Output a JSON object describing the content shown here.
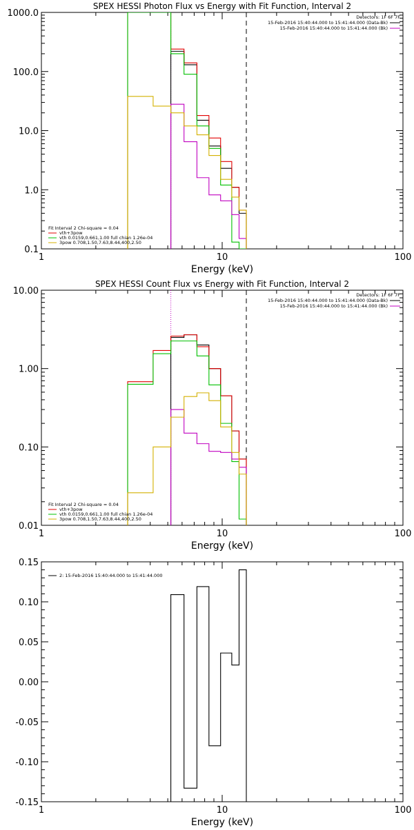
{
  "chart_data": [
    {
      "type": "line",
      "title": "SPEX HESSI Photon Flux vs Energy with Fit Function, Interval 2",
      "xlabel": "Energy (keV)",
      "ylabel": "",
      "xscale": "log",
      "yscale": "log",
      "xlim": [
        1,
        100
      ],
      "ylim": [
        0.1,
        1000
      ],
      "xtick_labels": [
        "1",
        "10",
        "100"
      ],
      "ytick_labels": [
        "0.1",
        "1.0",
        "10.0",
        "100.0",
        "1000.0"
      ],
      "vlines": [
        {
          "x": 5.2,
          "style": "dotted",
          "color": "#c000c0"
        },
        {
          "x": 13.6,
          "style": "dashed",
          "color": "#000000"
        }
      ],
      "info_top": {
        "detectors": "Detectors: 1F 6F 7F",
        "lines": [
          {
            "text": "15-Feb-2016 15:40:44.000 to 15:41:44.000 (Data-Bk)",
            "color": "#000000"
          },
          {
            "text": "15-Feb-2016 15:40:44.000 to 15:41:44.000 (Bk)",
            "color": "#c000c0"
          }
        ]
      },
      "legend": {
        "header": "Fit Interval 2   Chi-square = 0.04",
        "entries": [
          {
            "text": "vth+3pow",
            "color": "#e00000"
          },
          {
            "text": "vth 0.0159,0.661,1.00  full chian 1.26e-04",
            "color": "#00c000"
          },
          {
            "text": "3pow 0.708,1.50,7.63,8.44,400,2.50",
            "color": "#d4b000"
          }
        ]
      },
      "series": [
        {
          "color": "#000000",
          "x": [
            5.2,
            6.15,
            7.25,
            8.45,
            9.8,
            11.3,
            12.4,
            13.6
          ],
          "values": [
            220,
            130,
            15,
            5.5,
            2.3,
            1.1,
            0.4,
            0.14
          ]
        },
        {
          "color": "#e00000",
          "x": [
            3,
            4.15,
            5.2,
            6.15,
            7.25,
            8.45,
            9.8,
            11.3,
            12.4,
            13.6
          ],
          "values": [
            1000,
            1000,
            240,
            140,
            18,
            7.5,
            3,
            1.1,
            0.45,
            0.15
          ]
        },
        {
          "color": "#00c000",
          "x": [
            3,
            4.15,
            5.2,
            6.15,
            7.25,
            8.45,
            9.8,
            11.3,
            12.4,
            13.6
          ],
          "values": [
            1000,
            1000,
            200,
            90,
            12,
            5,
            1.2,
            0.13,
            0.1,
            0.1
          ]
        },
        {
          "color": "#c000c0",
          "x": [
            5.2,
            6.15,
            7.25,
            8.45,
            9.8,
            11.3,
            12.4,
            13.6
          ],
          "values": [
            28,
            6.5,
            1.6,
            0.82,
            0.65,
            0.38,
            0.15,
            0.15
          ]
        },
        {
          "color": "#d4b000",
          "x": [
            3,
            4.15,
            5.2,
            6.15,
            7.25,
            8.45,
            9.8,
            11.3,
            12.4,
            13.6
          ],
          "values": [
            38,
            26,
            20,
            12,
            8.5,
            3.8,
            1.5,
            0.75,
            0.45,
            0.45
          ]
        }
      ]
    },
    {
      "type": "line",
      "title": "SPEX HESSI Count Flux vs Energy with Fit Function, Interval 2",
      "xlabel": "Energy (keV)",
      "ylabel": "",
      "xscale": "log",
      "yscale": "log",
      "xlim": [
        1,
        100
      ],
      "ylim": [
        0.01,
        10
      ],
      "xtick_labels": [
        "1",
        "10",
        "100"
      ],
      "ytick_labels": [
        "0.01",
        "0.10",
        "1.00",
        "10.00"
      ],
      "vlines": [
        {
          "x": 5.2,
          "style": "dotted",
          "color": "#c000c0"
        },
        {
          "x": 13.6,
          "style": "dashed",
          "color": "#000000"
        }
      ],
      "info_top": {
        "detectors": "Detectors: 1F 6F 7F",
        "lines": [
          {
            "text": "15-Feb-2016 15:40:44.000 to 15:41:44.000 (Data-Bk)",
            "color": "#000000"
          },
          {
            "text": "15-Feb-2016 15:40:44.000 to 15:41:44.000 (Bk)",
            "color": "#c000c0"
          }
        ]
      },
      "legend": {
        "header": "Fit Interval 2   Chi-square = 0.04",
        "entries": [
          {
            "text": "vth+3pow",
            "color": "#e00000"
          },
          {
            "text": "vth 0.0159,0.661,1.00  full chian 1.26e-04",
            "color": "#00c000"
          },
          {
            "text": "3pow 0.708,1.50,7.63,8.44,400,2.50",
            "color": "#d4b000"
          }
        ]
      },
      "series": [
        {
          "color": "#000000",
          "x": [
            5.2,
            6.15,
            7.25,
            8.45,
            9.8,
            11.3,
            12.4,
            13.6
          ],
          "values": [
            2.5,
            2.7,
            2.0,
            1.0,
            0.45,
            0.16,
            0.07,
            0.022
          ]
        },
        {
          "color": "#e00000",
          "x": [
            3,
            4.15,
            5.2,
            6.15,
            7.25,
            8.45,
            9.8,
            11.3,
            12.4,
            13.6
          ],
          "values": [
            0.68,
            1.7,
            2.6,
            2.7,
            1.9,
            1.0,
            0.45,
            0.16,
            0.07,
            0.021
          ]
        },
        {
          "color": "#00c000",
          "x": [
            3,
            4.15,
            5.2,
            6.15,
            7.25,
            8.45,
            9.8,
            11.3,
            12.4,
            13.6
          ],
          "values": [
            0.63,
            1.55,
            2.25,
            2.25,
            1.45,
            0.62,
            0.2,
            0.065,
            0.012,
            0.012
          ]
        },
        {
          "color": "#c000c0",
          "x": [
            5.2,
            6.15,
            7.25,
            8.45,
            9.8,
            11.3,
            12.4,
            13.6
          ],
          "values": [
            0.3,
            0.15,
            0.11,
            0.088,
            0.085,
            0.07,
            0.055,
            0.045
          ]
        },
        {
          "color": "#d4b000",
          "x": [
            3,
            4.15,
            5.2,
            6.15,
            7.25,
            8.45,
            9.8,
            11.3,
            12.4,
            13.6
          ],
          "values": [
            0.026,
            0.1,
            0.24,
            0.44,
            0.49,
            0.39,
            0.18,
            0.085,
            0.045,
            0.038
          ]
        }
      ]
    },
    {
      "type": "line",
      "title": "",
      "xlabel": "Energy (keV)",
      "ylabel": "",
      "xscale": "log",
      "yscale": "linear",
      "xlim": [
        1,
        100
      ],
      "ylim": [
        -0.15,
        0.15
      ],
      "xtick_labels": [
        "1",
        "10",
        "100"
      ],
      "ytick_values": [
        -0.15,
        -0.1,
        -0.05,
        0.0,
        0.05,
        0.1,
        0.15
      ],
      "ytick_labels": [
        "-0.15",
        "-0.10",
        "-0.05",
        "0.00",
        "0.05",
        "0.10",
        "0.15"
      ],
      "legend": {
        "header": "",
        "entries": [
          {
            "text": "2: 15-Feb-2016 15:40:44.000 to 15:41:44.000",
            "color": "#000000"
          }
        ]
      },
      "series": [
        {
          "color": "#000000",
          "x": [
            5.2,
            6.15,
            7.25,
            8.45,
            9.8,
            11.3,
            12.4,
            13.6
          ],
          "values": [
            0.109,
            -0.133,
            0.119,
            -0.08,
            0.036,
            0.021,
            0.14,
            -0.065
          ]
        }
      ]
    }
  ]
}
